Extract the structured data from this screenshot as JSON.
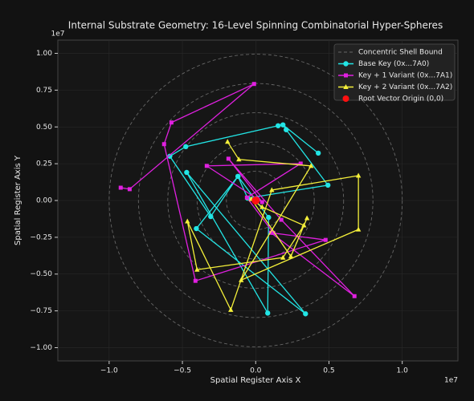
{
  "chart_data": {
    "type": "line",
    "title": "Internal Substrate Geometry: 16-Level Spinning Combinatorial Hyper-Spheres",
    "x_label": "Spatial Register Axis X",
    "y_label": "Spatial Register Axis Y",
    "x_offset_label": "1e7",
    "y_offset_label": "1e7",
    "xlim": [
      -1.35,
      1.38
    ],
    "ylim": [
      -1.09,
      1.09
    ],
    "xticks": [
      {
        "value": -1,
        "label": "−1.0"
      },
      {
        "value": -0.5,
        "label": "−0.5"
      },
      {
        "value": 0,
        "label": "0.0"
      },
      0.5,
      {
        "value": 1,
        "label": "1.0"
      }
    ],
    "yticks": [
      {
        "value": -1,
        "label": "−1.00"
      },
      {
        "value": -0.75,
        "label": "−0.75"
      },
      {
        "value": -0.5,
        "label": "−0.50"
      },
      {
        "value": -0.25,
        "label": "−0.25"
      },
      {
        "value": 0,
        "label": "0.00"
      },
      0.25,
      {
        "value": 0.5,
        "label": "0.50"
      },
      0.75,
      {
        "value": 1,
        "label": "1.00"
      }
    ],
    "grid": true,
    "legend": "upper right",
    "shells": {
      "name": "Concentric Shell Bound",
      "color": "#666666",
      "radii": [
        0.2,
        0.4,
        0.6,
        0.8,
        1.0
      ]
    },
    "series": [
      {
        "name": "Base Key (0x...7A0)",
        "color": "#22e5e5",
        "marker": "circle",
        "x": [
          0.153,
          -0.477,
          -0.586,
          -0.307,
          -0.121,
          0.088,
          0.082,
          -0.471,
          0.34,
          -0.405,
          -0.121,
          -0.055,
          0.493,
          0.208,
          0.186,
          0.427
        ],
        "values": [
          0.508,
          0.366,
          0.301,
          -0.109,
          0.164,
          -0.115,
          -0.765,
          0.191,
          -0.77,
          -0.191,
          0.164,
          0.016,
          0.104,
          0.481,
          0.514,
          0.322
        ]
      },
      {
        "name": "Key + 1 Variant (0x...7A1)",
        "color": "#e020e0",
        "marker": "square",
        "x": [
          -0.921,
          -0.86,
          -0.011,
          -0.575,
          -0.625,
          -0.411,
          0.477,
          0.104,
          0.674,
          0.175,
          -0.186,
          0.044,
          -0.334,
          0.307,
          -0.06,
          0.12
        ],
        "values": [
          0.087,
          0.077,
          0.792,
          0.53,
          0.383,
          -0.546,
          -0.268,
          -0.219,
          -0.65,
          -0.131,
          0.284,
          -0.011,
          0.235,
          0.251,
          0.02,
          -0.22
        ]
      },
      {
        "name": "Key + 2 Variant (0x...7A2)",
        "color": "#f5f03a",
        "marker": "triangle",
        "x": [
          -0.192,
          -0.115,
          0.378,
          -0.099,
          0.701,
          0.701,
          0.11,
          -0.17,
          -0.466,
          -0.4,
          0.186,
          0.329,
          0.044,
          -0.03,
          0.24,
          0.35
        ],
        "values": [
          0.399,
          0.279,
          0.235,
          -0.541,
          -0.197,
          0.169,
          0.071,
          -0.743,
          -0.142,
          -0.47,
          -0.388,
          -0.169,
          -0.044,
          0.01,
          -0.38,
          -0.12
        ]
      }
    ],
    "origin": {
      "name": "Root Vector Origin (0,0)",
      "color": "#ff1010",
      "x": 0,
      "y": 0
    }
  }
}
